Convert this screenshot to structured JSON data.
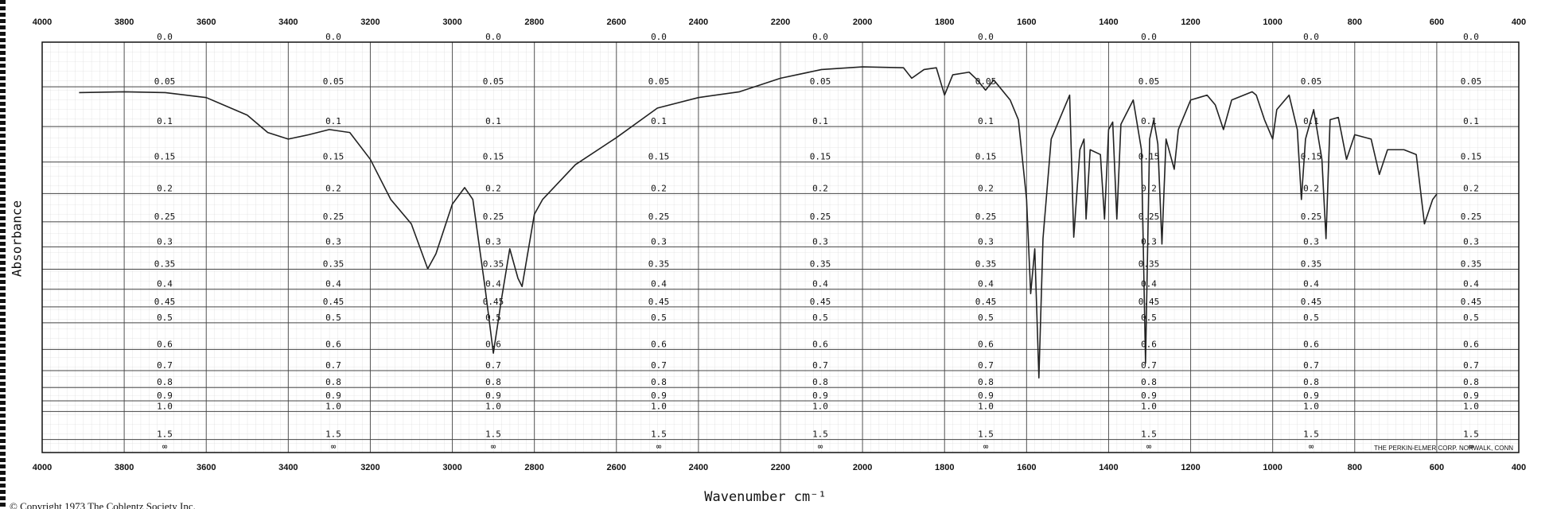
{
  "chart_data": {
    "type": "line",
    "x_label": "Wavenumber cm⁻¹",
    "y_label": "Absorbance",
    "footer_note": "THE PERKIN-ELMER CORP. NORWALK, CONN",
    "copyright": "© Copyright 1973 The Coblentz Society Inc.",
    "color": "#222222",
    "grid": true,
    "yscale": "absorbance",
    "xlim": [
      4000,
      400
    ],
    "xticks": [
      4000,
      3800,
      3600,
      3400,
      3200,
      3000,
      2800,
      2600,
      2400,
      2200,
      2000,
      1800,
      1600,
      1400,
      1200,
      1000,
      800,
      600,
      400
    ],
    "yticks": [
      {
        "value": 0,
        "label": "0.0"
      },
      0.05,
      0.1,
      0.15,
      0.2,
      0.25,
      0.3,
      0.35,
      0.4,
      0.45,
      0.5,
      0.6,
      0.7,
      0.8,
      0.9,
      {
        "value": 1,
        "label": "1.0"
      },
      1.5
    ],
    "y_infinity_label": "∞",
    "x": [
      3910,
      3800,
      3700,
      3600,
      3500,
      3450,
      3400,
      3350,
      3300,
      3250,
      3200,
      3150,
      3100,
      3060,
      3040,
      3000,
      2970,
      2950,
      2920,
      2900,
      2880,
      2860,
      2840,
      2830,
      2800,
      2780,
      2700,
      2600,
      2500,
      2400,
      2300,
      2200,
      2100,
      2000,
      1900,
      1880,
      1850,
      1820,
      1800,
      1780,
      1740,
      1720,
      1700,
      1680,
      1640,
      1620,
      1600,
      1590,
      1580,
      1570,
      1560,
      1540,
      1500,
      1495,
      1485,
      1470,
      1460,
      1455,
      1445,
      1420,
      1410,
      1400,
      1390,
      1380,
      1370,
      1340,
      1320,
      1310,
      1300,
      1290,
      1280,
      1270,
      1260,
      1240,
      1230,
      1200,
      1180,
      1160,
      1140,
      1120,
      1100,
      1050,
      1040,
      1020,
      1000,
      990,
      960,
      940,
      930,
      920,
      900,
      880,
      870,
      860,
      840,
      820,
      800,
      760,
      740,
      720,
      680,
      650,
      630,
      610,
      600
    ],
    "values": [
      0.057,
      0.056,
      0.057,
      0.063,
      0.085,
      0.108,
      0.117,
      0.111,
      0.104,
      0.108,
      0.146,
      0.21,
      0.254,
      0.349,
      0.315,
      0.218,
      0.19,
      0.21,
      0.398,
      0.616,
      0.426,
      0.304,
      0.372,
      0.393,
      0.236,
      0.21,
      0.154,
      0.115,
      0.076,
      0.063,
      0.056,
      0.04,
      0.03,
      0.027,
      0.028,
      0.04,
      0.03,
      0.028,
      0.06,
      0.036,
      0.033,
      0.042,
      0.054,
      0.042,
      0.066,
      0.091,
      0.21,
      0.412,
      0.304,
      0.74,
      0.283,
      0.117,
      0.066,
      0.06,
      0.28,
      0.132,
      0.117,
      0.245,
      0.132,
      0.139,
      0.245,
      0.104,
      0.094,
      0.245,
      0.097,
      0.066,
      0.132,
      0.662,
      0.117,
      0.091,
      0.124,
      0.294,
      0.117,
      0.161,
      0.104,
      0.066,
      0.063,
      0.06,
      0.072,
      0.104,
      0.066,
      0.056,
      0.06,
      0.091,
      0.117,
      0.078,
      0.06,
      0.104,
      0.21,
      0.117,
      0.078,
      0.146,
      0.283,
      0.091,
      0.088,
      0.146,
      0.111,
      0.117,
      0.169,
      0.132,
      0.132,
      0.139,
      0.254,
      0.21,
      0.201
    ]
  }
}
